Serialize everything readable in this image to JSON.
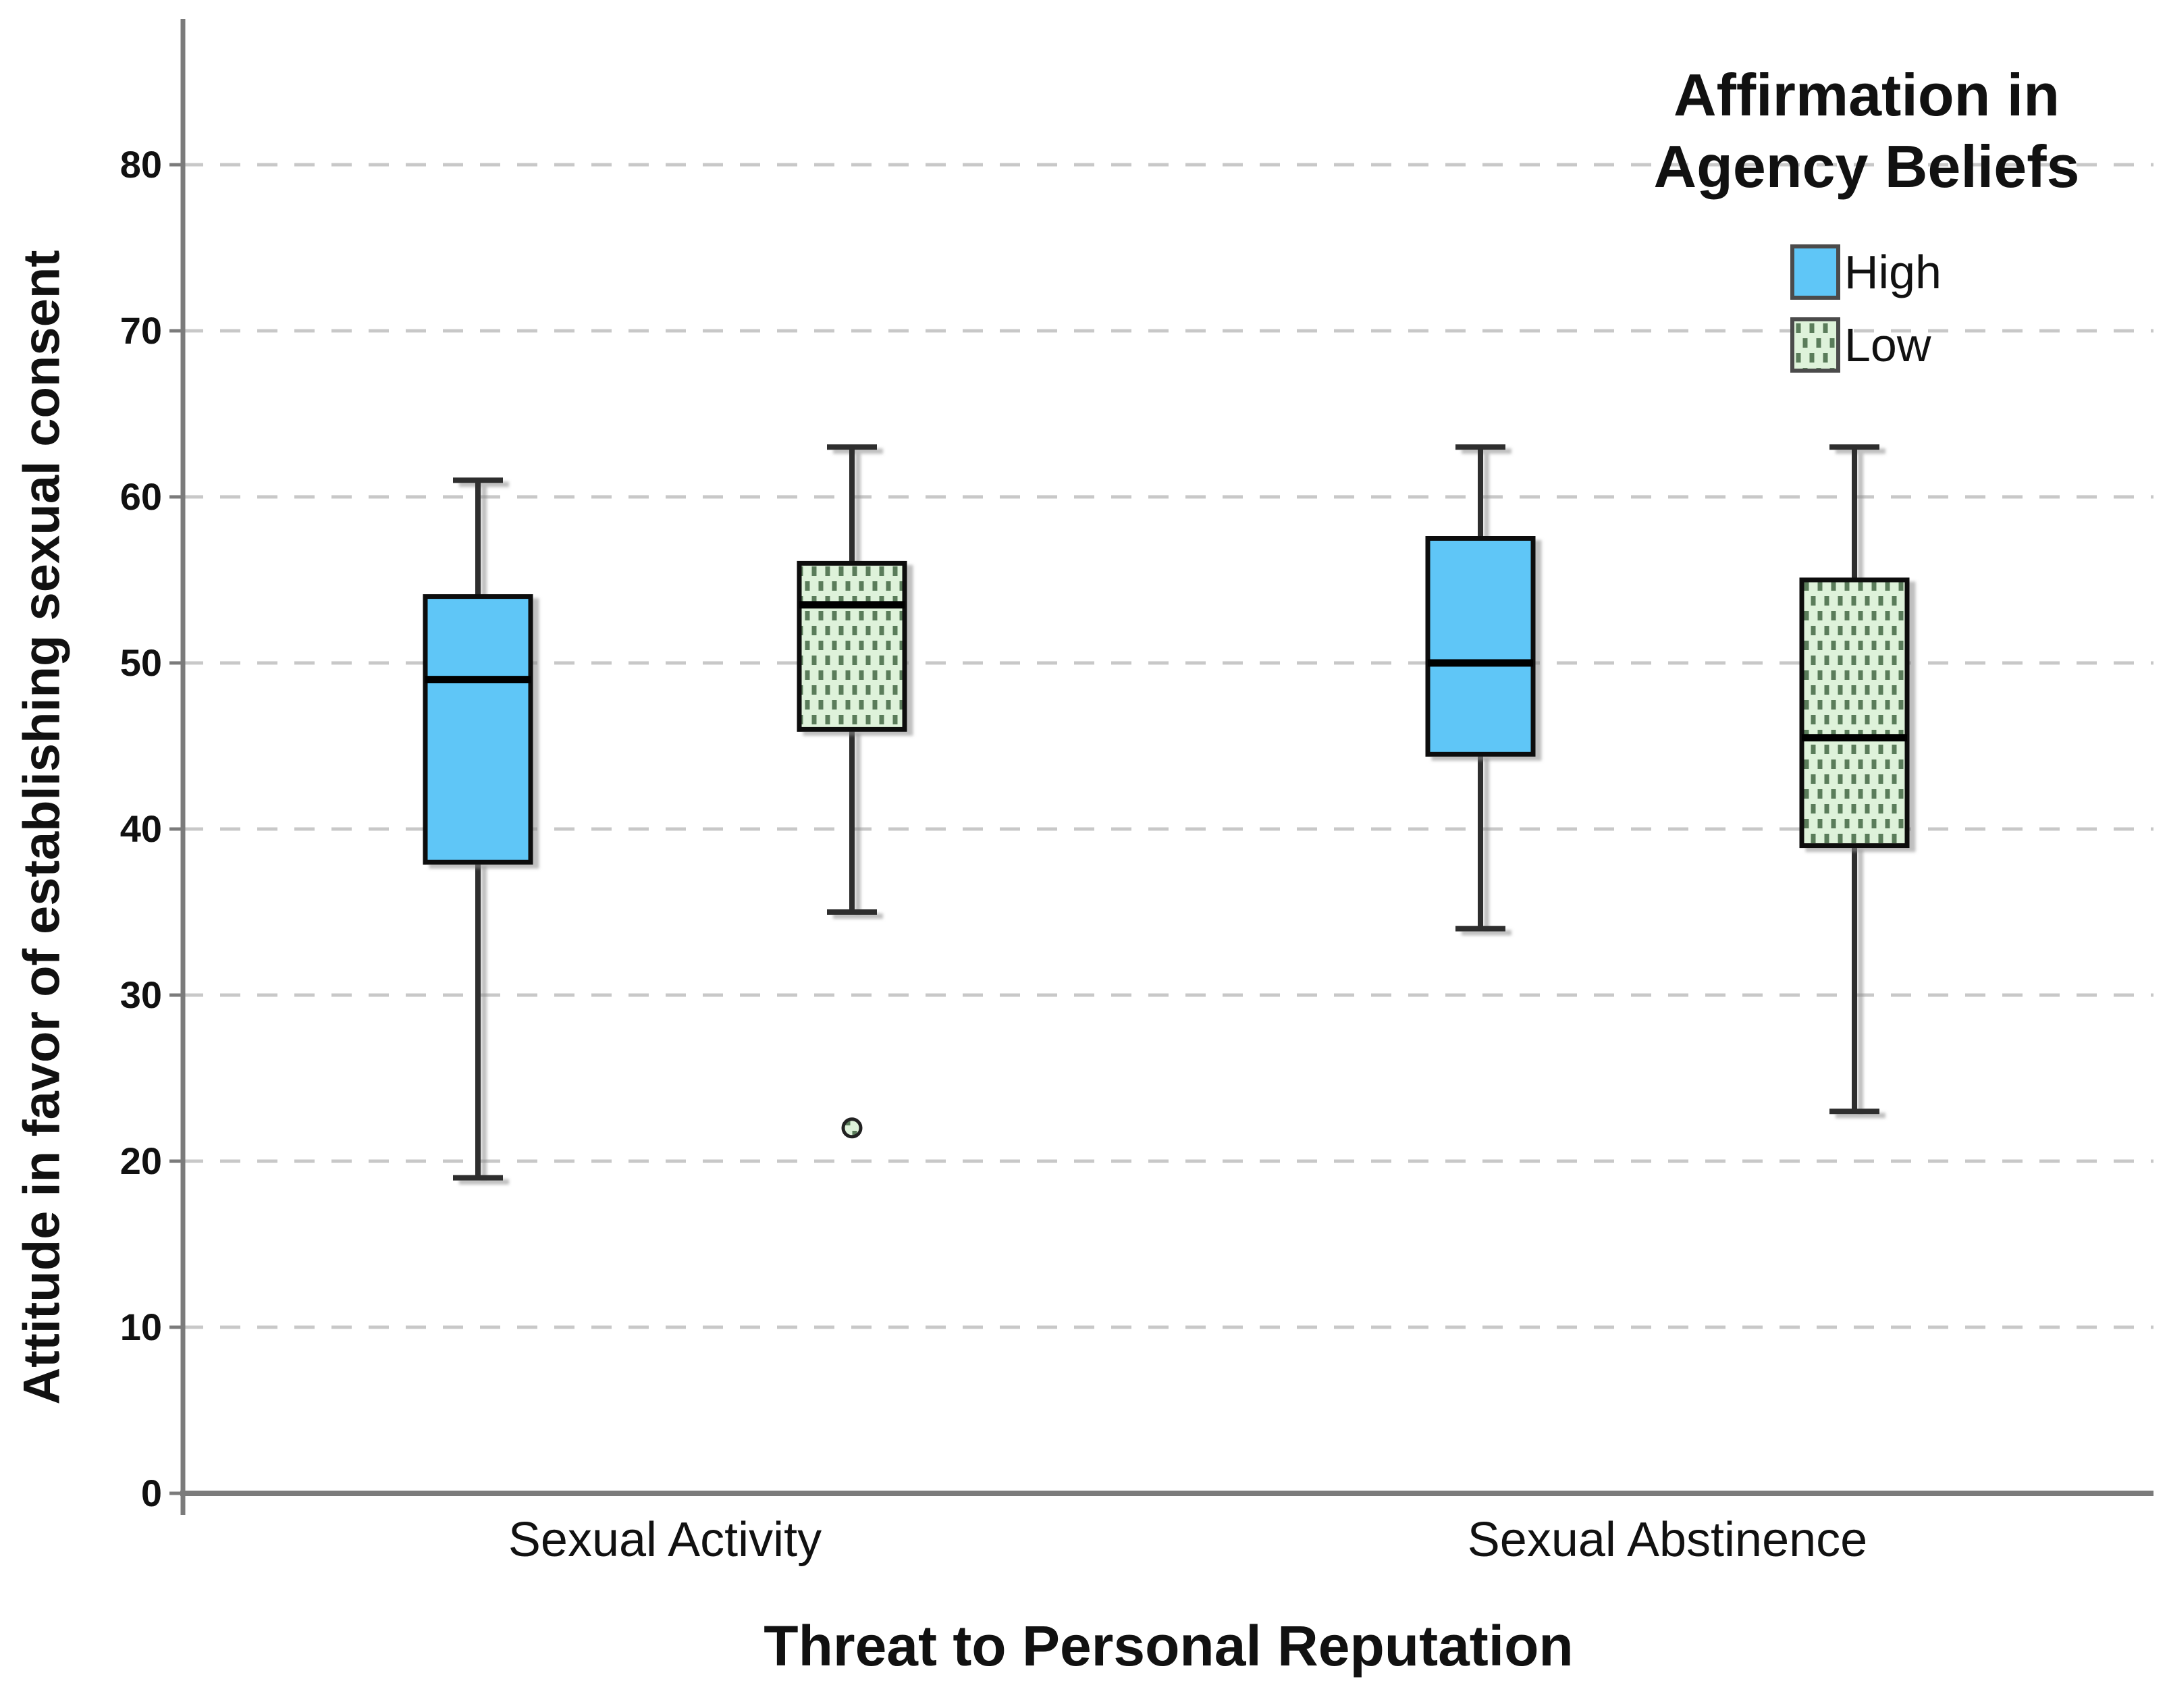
{
  "chart_data": {
    "type": "boxplot",
    "title": "",
    "xlabel": "Threat to Personal Reputation",
    "ylabel": "Attitude in favor of establishing sexual consent",
    "categories": [
      "Sexual Activity",
      "Sexual Abstinence"
    ],
    "ylim": [
      0,
      88
    ],
    "yticks": [
      0,
      10,
      20,
      30,
      40,
      50,
      60,
      70,
      80
    ],
    "grid": {
      "show": true,
      "style": "dashed",
      "color": "#c8c8c8"
    },
    "legend": {
      "title": "Affirmation in\nAgency Beliefs",
      "position": "top-right",
      "items": [
        {
          "label": "High",
          "swatch": "solid-blue"
        },
        {
          "label": "Low",
          "swatch": "dotted-green"
        }
      ]
    },
    "colors": {
      "high_fill": "#5fc6f7",
      "low_fill": "#def2da",
      "low_dot": "#5a7c5a",
      "box_stroke": "#111111",
      "median": "#000000",
      "whisker": "#2e2e2e",
      "axis": "#7b7b7b",
      "gridline": "#c8c8c8",
      "shadow": "#8a8a8a"
    },
    "series": [
      {
        "name": "High",
        "boxes": [
          {
            "category": "Sexual Activity",
            "whisker_low": 19,
            "q1": 38,
            "median": 49,
            "q3": 54,
            "whisker_high": 61,
            "outliers": []
          },
          {
            "category": "Sexual Abstinence",
            "whisker_low": 34,
            "q1": 44.5,
            "median": 50,
            "q3": 57.5,
            "whisker_high": 63,
            "outliers": []
          }
        ]
      },
      {
        "name": "Low",
        "boxes": [
          {
            "category": "Sexual Activity",
            "whisker_low": 35,
            "q1": 46,
            "median": 53.5,
            "q3": 56,
            "whisker_high": 63,
            "outliers": [
              22
            ]
          },
          {
            "category": "Sexual Abstinence",
            "whisker_low": 23,
            "q1": 39,
            "median": 45.5,
            "q3": 55,
            "whisker_high": 63,
            "outliers": []
          }
        ]
      }
    ]
  }
}
